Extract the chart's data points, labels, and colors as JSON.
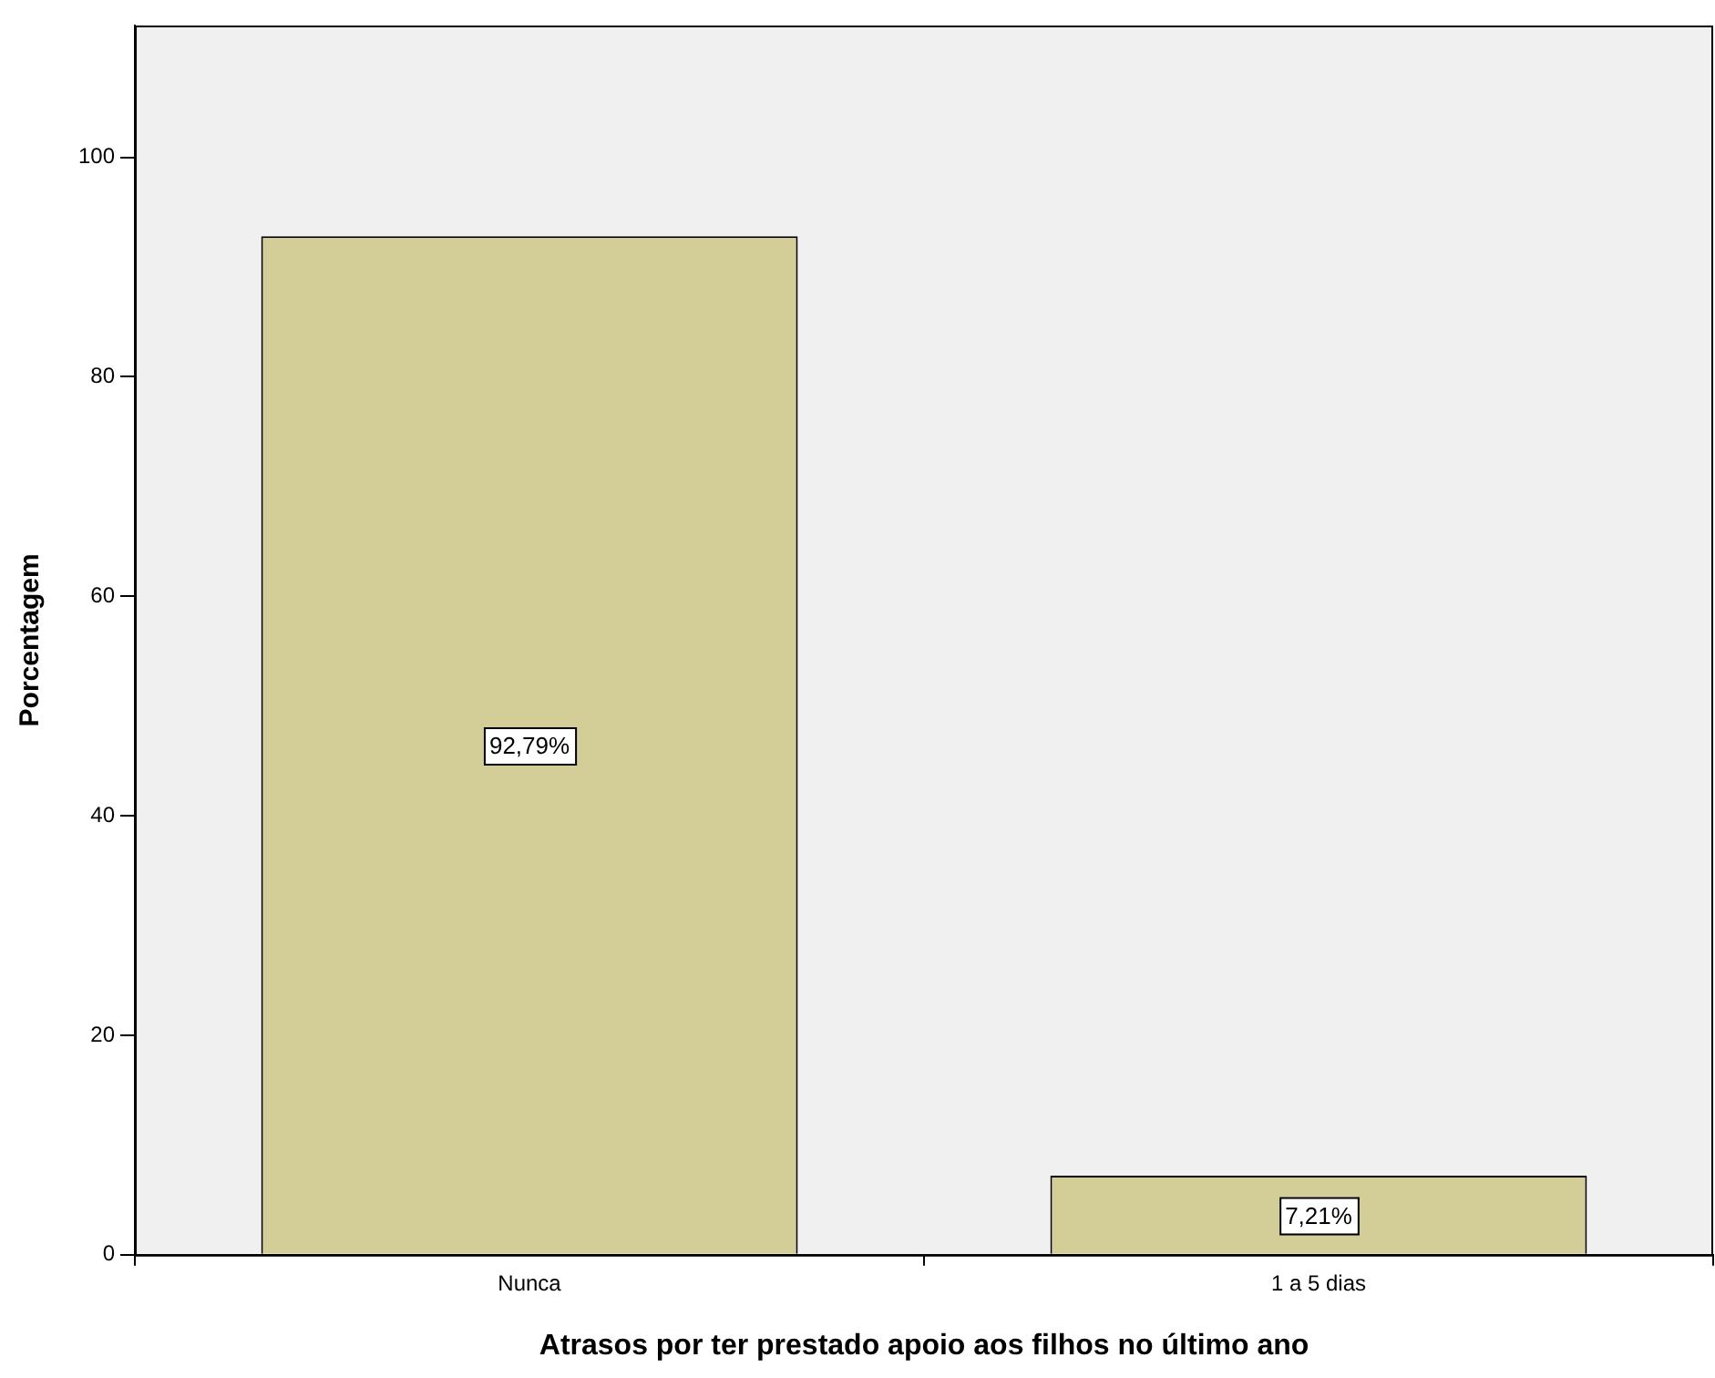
{
  "chart_data": {
    "type": "bar",
    "xlabel": "Atrasos por ter prestado apoio aos filhos no último ano",
    "ylabel": "Porcentagem",
    "categories": [
      "Nunca",
      "1 a 5 dias"
    ],
    "values": [
      92.79,
      7.21
    ],
    "value_labels": [
      "92,79%",
      "7,21%"
    ],
    "color": "#d3ce97",
    "ylim": [
      0,
      112
    ],
    "yticks": [
      0,
      20,
      40,
      60,
      80,
      100
    ],
    "grid": false,
    "legend": false
  }
}
